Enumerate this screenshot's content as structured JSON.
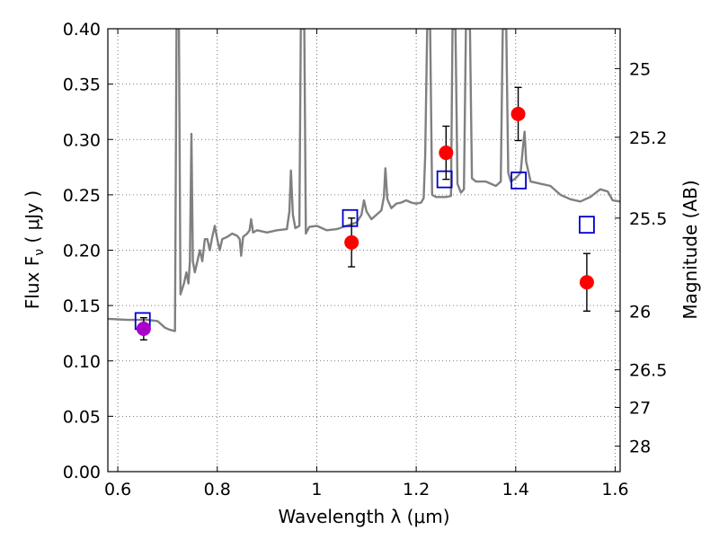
{
  "chart_data": {
    "type": "scatter",
    "xlabel": "Wavelength  λ (μm)",
    "ylabel": "Flux  F",
    "ylabel_sub": "ν",
    "ylabel_unit": "  ( μJy )",
    "y2label": "Magnitude (AB)",
    "xlim": [
      0.58,
      1.61
    ],
    "ylim": [
      0.0,
      0.4
    ],
    "grid": true,
    "x_ticks": [
      {
        "value": 0.6,
        "label": "0.6"
      },
      {
        "value": 0.8,
        "label": "0.8"
      },
      {
        "value": 1.0,
        "label": "1"
      },
      {
        "value": 1.2,
        "label": "1.2"
      },
      {
        "value": 1.4,
        "label": "1.4"
      },
      {
        "value": 1.6,
        "label": "1.6"
      }
    ],
    "y_ticks": [
      {
        "value": 0.0,
        "label": "0.00"
      },
      {
        "value": 0.05,
        "label": "0.05"
      },
      {
        "value": 0.1,
        "label": "0.10"
      },
      {
        "value": 0.15,
        "label": "0.15"
      },
      {
        "value": 0.2,
        "label": "0.20"
      },
      {
        "value": 0.25,
        "label": "0.25"
      },
      {
        "value": 0.3,
        "label": "0.30"
      },
      {
        "value": 0.35,
        "label": "0.35"
      },
      {
        "value": 0.4,
        "label": "0.40"
      }
    ],
    "y2_ticks": [
      {
        "flux": 0.364,
        "label": "25"
      },
      {
        "flux": 0.302,
        "label": "25.2"
      },
      {
        "flux": 0.229,
        "label": "25.5"
      },
      {
        "flux": 0.145,
        "label": "26"
      },
      {
        "flux": 0.092,
        "label": "26.5"
      },
      {
        "flux": 0.058,
        "label": "27"
      },
      {
        "flux": 0.023,
        "label": "28"
      }
    ],
    "colors": {
      "spectrum": "#808080",
      "observed": "#ff0000",
      "observed_optical": "#aa00cc",
      "model": "#0000cc",
      "errorbar": "#000000",
      "grid": "#555555"
    },
    "series": [
      {
        "kind": "line",
        "points": [
          [
            0.58,
            0.138
          ],
          [
            0.62,
            0.137
          ],
          [
            0.66,
            0.137
          ],
          [
            0.68,
            0.136
          ],
          [
            0.695,
            0.13
          ],
          [
            0.705,
            0.128
          ],
          [
            0.715,
            0.127
          ],
          [
            0.718,
            0.4
          ],
          [
            0.723,
            0.4
          ],
          [
            0.726,
            0.16
          ],
          [
            0.733,
            0.17
          ],
          [
            0.738,
            0.18
          ],
          [
            0.742,
            0.17
          ],
          [
            0.745,
            0.19
          ],
          [
            0.748,
            0.305
          ],
          [
            0.751,
            0.19
          ],
          [
            0.755,
            0.18
          ],
          [
            0.76,
            0.19
          ],
          [
            0.765,
            0.2
          ],
          [
            0.77,
            0.19
          ],
          [
            0.775,
            0.21
          ],
          [
            0.78,
            0.21
          ],
          [
            0.785,
            0.2
          ],
          [
            0.79,
            0.212
          ],
          [
            0.795,
            0.222
          ],
          [
            0.8,
            0.21
          ],
          [
            0.805,
            0.2
          ],
          [
            0.81,
            0.21
          ],
          [
            0.82,
            0.212
          ],
          [
            0.83,
            0.215
          ],
          [
            0.84,
            0.213
          ],
          [
            0.845,
            0.21
          ],
          [
            0.848,
            0.195
          ],
          [
            0.852,
            0.212
          ],
          [
            0.86,
            0.215
          ],
          [
            0.865,
            0.218
          ],
          [
            0.868,
            0.228
          ],
          [
            0.872,
            0.216
          ],
          [
            0.88,
            0.218
          ],
          [
            0.9,
            0.216
          ],
          [
            0.92,
            0.218
          ],
          [
            0.94,
            0.219
          ],
          [
            0.945,
            0.235
          ],
          [
            0.948,
            0.272
          ],
          [
            0.952,
            0.232
          ],
          [
            0.957,
            0.22
          ],
          [
            0.965,
            0.222
          ],
          [
            0.968,
            0.4
          ],
          [
            0.975,
            0.4
          ],
          [
            0.978,
            0.215
          ],
          [
            0.985,
            0.221
          ],
          [
            1.0,
            0.222
          ],
          [
            1.02,
            0.218
          ],
          [
            1.04,
            0.219
          ],
          [
            1.06,
            0.222
          ],
          [
            1.08,
            0.225
          ],
          [
            1.09,
            0.232
          ],
          [
            1.095,
            0.245
          ],
          [
            1.1,
            0.235
          ],
          [
            1.11,
            0.228
          ],
          [
            1.12,
            0.232
          ],
          [
            1.13,
            0.236
          ],
          [
            1.135,
            0.248
          ],
          [
            1.138,
            0.274
          ],
          [
            1.142,
            0.246
          ],
          [
            1.15,
            0.238
          ],
          [
            1.16,
            0.242
          ],
          [
            1.17,
            0.243
          ],
          [
            1.18,
            0.245
          ],
          [
            1.19,
            0.243
          ],
          [
            1.2,
            0.242
          ],
          [
            1.21,
            0.243
          ],
          [
            1.215,
            0.247
          ],
          [
            1.218,
            0.285
          ],
          [
            1.222,
            0.4
          ],
          [
            1.228,
            0.4
          ],
          [
            1.232,
            0.25
          ],
          [
            1.24,
            0.248
          ],
          [
            1.26,
            0.248
          ],
          [
            1.27,
            0.249
          ],
          [
            1.273,
            0.4
          ],
          [
            1.279,
            0.4
          ],
          [
            1.283,
            0.26
          ],
          [
            1.29,
            0.252
          ],
          [
            1.296,
            0.255
          ],
          [
            1.3,
            0.4
          ],
          [
            1.308,
            0.4
          ],
          [
            1.312,
            0.265
          ],
          [
            1.32,
            0.262
          ],
          [
            1.34,
            0.262
          ],
          [
            1.36,
            0.258
          ],
          [
            1.37,
            0.262
          ],
          [
            1.374,
            0.4
          ],
          [
            1.381,
            0.4
          ],
          [
            1.385,
            0.27
          ],
          [
            1.39,
            0.262
          ],
          [
            1.4,
            0.265
          ],
          [
            1.41,
            0.27
          ],
          [
            1.415,
            0.295
          ],
          [
            1.418,
            0.307
          ],
          [
            1.421,
            0.28
          ],
          [
            1.43,
            0.262
          ],
          [
            1.45,
            0.26
          ],
          [
            1.47,
            0.258
          ],
          [
            1.49,
            0.25
          ],
          [
            1.51,
            0.246
          ],
          [
            1.53,
            0.244
          ],
          [
            1.55,
            0.248
          ],
          [
            1.57,
            0.255
          ],
          [
            1.585,
            0.253
          ],
          [
            1.595,
            0.245
          ],
          [
            1.61,
            0.244
          ]
        ]
      },
      {
        "kind": "observed",
        "points": [
          {
            "x": 1.07,
            "y": 0.207,
            "err": 0.022
          },
          {
            "x": 1.26,
            "y": 0.288,
            "err": 0.024
          },
          {
            "x": 1.405,
            "y": 0.323,
            "err": 0.024
          },
          {
            "x": 1.543,
            "y": 0.171,
            "err": 0.026
          }
        ]
      },
      {
        "kind": "observed_optical",
        "points": [
          {
            "x": 0.652,
            "y": 0.129,
            "err": 0.01
          }
        ]
      },
      {
        "kind": "model",
        "points": [
          {
            "x": 0.65,
            "y": 0.136
          },
          {
            "x": 1.067,
            "y": 0.229
          },
          {
            "x": 1.257,
            "y": 0.264
          },
          {
            "x": 1.406,
            "y": 0.263
          },
          {
            "x": 1.543,
            "y": 0.223
          }
        ]
      }
    ]
  }
}
